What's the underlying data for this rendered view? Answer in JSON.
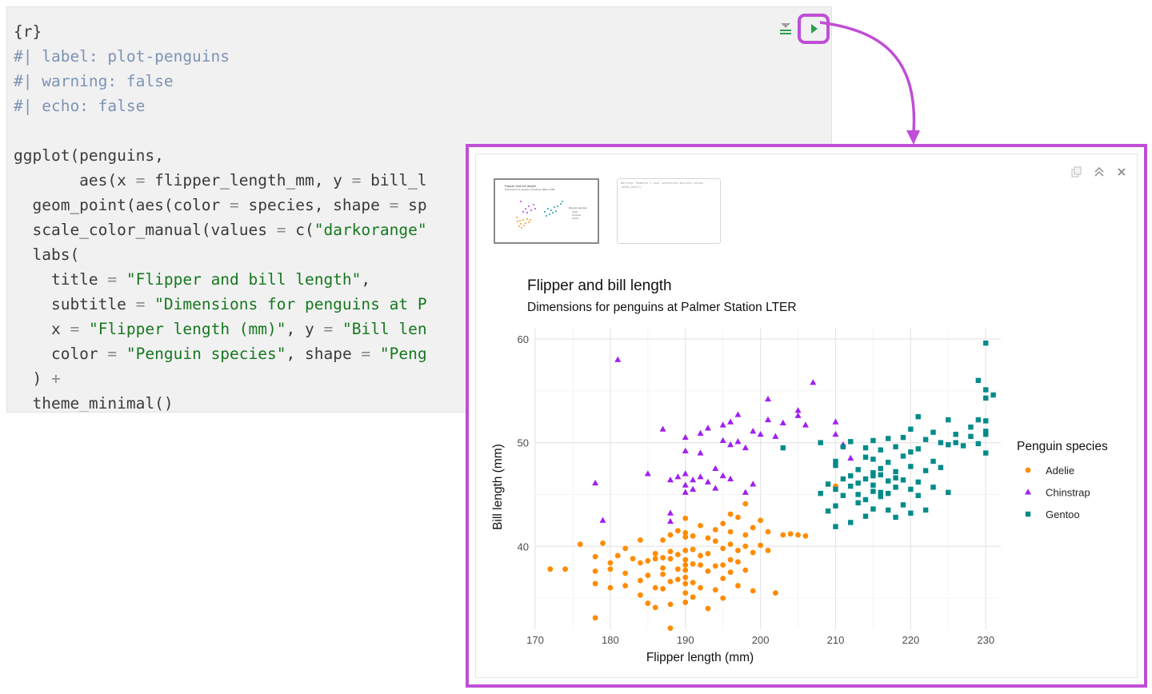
{
  "code_chunk": {
    "lines": [
      [
        {
          "t": "{r}",
          "c": "c-plain"
        }
      ],
      [
        {
          "t": "#| label: plot-penguins",
          "c": "c-com"
        }
      ],
      [
        {
          "t": "#| warning: false",
          "c": "c-com"
        }
      ],
      [
        {
          "t": "#| echo: false",
          "c": "c-com"
        }
      ],
      [
        {
          "t": "",
          "c": "c-plain"
        }
      ],
      [
        {
          "t": "ggplot(penguins,",
          "c": "c-plain"
        }
      ],
      [
        {
          "t": "       aes(x ",
          "c": "c-plain"
        },
        {
          "t": "=",
          "c": "c-op"
        },
        {
          "t": " flipper_length_mm, y ",
          "c": "c-plain"
        },
        {
          "t": "=",
          "c": "c-op"
        },
        {
          "t": " bill_l",
          "c": "c-plain"
        }
      ],
      [
        {
          "t": "  geom_point(aes(color ",
          "c": "c-plain"
        },
        {
          "t": "=",
          "c": "c-op"
        },
        {
          "t": " species, shape ",
          "c": "c-plain"
        },
        {
          "t": "=",
          "c": "c-op"
        },
        {
          "t": " sp",
          "c": "c-plain"
        }
      ],
      [
        {
          "t": "  scale_color_manual(values ",
          "c": "c-plain"
        },
        {
          "t": "=",
          "c": "c-op"
        },
        {
          "t": " c(",
          "c": "c-plain"
        },
        {
          "t": "\"darkorange\"",
          "c": "c-str"
        }
      ],
      [
        {
          "t": "  labs(",
          "c": "c-plain"
        }
      ],
      [
        {
          "t": "    title ",
          "c": "c-plain"
        },
        {
          "t": "=",
          "c": "c-op"
        },
        {
          "t": " ",
          "c": "c-plain"
        },
        {
          "t": "\"Flipper and bill length\"",
          "c": "c-str"
        },
        {
          "t": ",",
          "c": "c-plain"
        }
      ],
      [
        {
          "t": "    subtitle ",
          "c": "c-plain"
        },
        {
          "t": "=",
          "c": "c-op"
        },
        {
          "t": " ",
          "c": "c-plain"
        },
        {
          "t": "\"Dimensions for penguins at P",
          "c": "c-str"
        }
      ],
      [
        {
          "t": "    x ",
          "c": "c-plain"
        },
        {
          "t": "=",
          "c": "c-op"
        },
        {
          "t": " ",
          "c": "c-plain"
        },
        {
          "t": "\"Flipper length (mm)\"",
          "c": "c-str"
        },
        {
          "t": ", y ",
          "c": "c-plain"
        },
        {
          "t": "=",
          "c": "c-op"
        },
        {
          "t": " ",
          "c": "c-plain"
        },
        {
          "t": "\"Bill len",
          "c": "c-str"
        }
      ],
      [
        {
          "t": "    color ",
          "c": "c-plain"
        },
        {
          "t": "=",
          "c": "c-op"
        },
        {
          "t": " ",
          "c": "c-plain"
        },
        {
          "t": "\"Penguin species\"",
          "c": "c-str"
        },
        {
          "t": ", shape ",
          "c": "c-plain"
        },
        {
          "t": "=",
          "c": "c-op"
        },
        {
          "t": " ",
          "c": "c-plain"
        },
        {
          "t": "\"Peng",
          "c": "c-str"
        }
      ],
      [
        {
          "t": "  ) ",
          "c": "c-plain"
        },
        {
          "t": "+",
          "c": "c-op"
        }
      ],
      [
        {
          "t": "  theme_minimal()",
          "c": "c-plain"
        }
      ]
    ]
  },
  "toolbar": {
    "collapse_icon": "collapse-icon",
    "run_icon": "run-chunk-icon"
  },
  "colors": {
    "highlight": "#c04ed6",
    "run": "#2e9e4f",
    "adelie": "#ff8c00",
    "chinstrap": "#a020f0",
    "gentoo": "#008b8b"
  },
  "panel": {
    "tool_icons": [
      "copy-icon",
      "expand-icon",
      "close-icon"
    ],
    "thumbnail_warning": "Warning: Removed 2 rows containing missing values (geom_point)."
  },
  "chart_data": {
    "type": "scatter",
    "title": "Flipper and bill length",
    "subtitle": "Dimensions for penguins at Palmer Station LTER",
    "xlabel": "Flipper length (mm)",
    "ylabel": "Bill length (mm)",
    "xlim": [
      170,
      232
    ],
    "ylim": [
      32,
      61
    ],
    "xticks": [
      170,
      180,
      190,
      200,
      210,
      220,
      230
    ],
    "yticks": [
      40,
      50,
      60
    ],
    "grid": true,
    "legend": {
      "title": "Penguin species",
      "position": "right"
    },
    "series": [
      {
        "name": "Adelie",
        "color": "#ff8c00",
        "shape": "circle",
        "points": [
          [
            172,
            37.8
          ],
          [
            174,
            37.8
          ],
          [
            176,
            40.2
          ],
          [
            178,
            39.0
          ],
          [
            178,
            37.6
          ],
          [
            178,
            36.4
          ],
          [
            178,
            33.1
          ],
          [
            179,
            40.3
          ],
          [
            180,
            38.4
          ],
          [
            180,
            36.0
          ],
          [
            180,
            37.8
          ],
          [
            181,
            39.1
          ],
          [
            182,
            39.8
          ],
          [
            182,
            37.4
          ],
          [
            182,
            36.2
          ],
          [
            183,
            38.8
          ],
          [
            184,
            38.4
          ],
          [
            184,
            40.6
          ],
          [
            184,
            36.7
          ],
          [
            184,
            35.3
          ],
          [
            185,
            37.2
          ],
          [
            185,
            38.6
          ],
          [
            185,
            34.5
          ],
          [
            186,
            39.3
          ],
          [
            186,
            38.8
          ],
          [
            186,
            36.0
          ],
          [
            186,
            34.1
          ],
          [
            187,
            37.3
          ],
          [
            187,
            38.9
          ],
          [
            187,
            40.6
          ],
          [
            187,
            35.9
          ],
          [
            187,
            37.9
          ],
          [
            188,
            38.8
          ],
          [
            188,
            36.6
          ],
          [
            188,
            34.4
          ],
          [
            188,
            39.5
          ],
          [
            188,
            41.1
          ],
          [
            188,
            32.1
          ],
          [
            189,
            37.8
          ],
          [
            189,
            41.5
          ],
          [
            189,
            39.2
          ],
          [
            189,
            36.8
          ],
          [
            190,
            38.2
          ],
          [
            190,
            40.9
          ],
          [
            190,
            37.7
          ],
          [
            190,
            36.4
          ],
          [
            190,
            38.7
          ],
          [
            190,
            35.5
          ],
          [
            190,
            39.6
          ],
          [
            190,
            34.6
          ],
          [
            190,
            41.3
          ],
          [
            190,
            37.0
          ],
          [
            190,
            42.7
          ],
          [
            191,
            36.5
          ],
          [
            191,
            38.3
          ],
          [
            191,
            41.0
          ],
          [
            191,
            39.7
          ],
          [
            191,
            35.1
          ],
          [
            192,
            38.2
          ],
          [
            192,
            39.1
          ],
          [
            192,
            36.0
          ],
          [
            192,
            42.0
          ],
          [
            193,
            39.3
          ],
          [
            193,
            37.6
          ],
          [
            193,
            40.8
          ],
          [
            193,
            34.0
          ],
          [
            194,
            38.1
          ],
          [
            194,
            35.8
          ],
          [
            194,
            40.5
          ],
          [
            194,
            41.6
          ],
          [
            195,
            38.2
          ],
          [
            195,
            36.9
          ],
          [
            195,
            39.8
          ],
          [
            195,
            42.2
          ],
          [
            195,
            35.0
          ],
          [
            196,
            40.2
          ],
          [
            196,
            37.5
          ],
          [
            196,
            41.4
          ],
          [
            196,
            38.7
          ],
          [
            196,
            43.1
          ],
          [
            197,
            39.6
          ],
          [
            197,
            36.2
          ],
          [
            197,
            42.8
          ],
          [
            197,
            38.5
          ],
          [
            198,
            41.1
          ],
          [
            198,
            37.7
          ],
          [
            198,
            40.0
          ],
          [
            198,
            44.1
          ],
          [
            199,
            39.4
          ],
          [
            199,
            41.8
          ],
          [
            199,
            35.7
          ],
          [
            200,
            40.1
          ],
          [
            200,
            42.5
          ],
          [
            201,
            41.4
          ],
          [
            201,
            39.6
          ],
          [
            202,
            35.5
          ],
          [
            203,
            41.1
          ],
          [
            204,
            41.2
          ],
          [
            205,
            41.1
          ],
          [
            206,
            41.0
          ],
          [
            210,
            45.8
          ]
        ]
      },
      {
        "name": "Chinstrap",
        "color": "#a020f0",
        "shape": "triangle",
        "points": [
          [
            178,
            46.1
          ],
          [
            179,
            42.5
          ],
          [
            181,
            58.0
          ],
          [
            185,
            47.0
          ],
          [
            187,
            51.3
          ],
          [
            188,
            43.2
          ],
          [
            188,
            42.4
          ],
          [
            188,
            46.4
          ],
          [
            189,
            46.7
          ],
          [
            190,
            47.0
          ],
          [
            190,
            45.9
          ],
          [
            190,
            49.2
          ],
          [
            190,
            45.2
          ],
          [
            190,
            50.5
          ],
          [
            191,
            46.4
          ],
          [
            191,
            45.5
          ],
          [
            192,
            46.7
          ],
          [
            192,
            49.0
          ],
          [
            192,
            50.9
          ],
          [
            193,
            46.2
          ],
          [
            193,
            51.4
          ],
          [
            194,
            47.5
          ],
          [
            194,
            45.6
          ],
          [
            195,
            51.7
          ],
          [
            195,
            46.8
          ],
          [
            195,
            50.2
          ],
          [
            196,
            49.8
          ],
          [
            196,
            52.0
          ],
          [
            196,
            46.5
          ],
          [
            197,
            50.1
          ],
          [
            197,
            52.7
          ],
          [
            198,
            45.2
          ],
          [
            198,
            49.5
          ],
          [
            199,
            51.1
          ],
          [
            199,
            46.0
          ],
          [
            200,
            50.8
          ],
          [
            201,
            52.2
          ],
          [
            201,
            54.2
          ],
          [
            202,
            50.6
          ],
          [
            203,
            51.9
          ],
          [
            205,
            53.1
          ],
          [
            205,
            52.6
          ],
          [
            206,
            51.7
          ],
          [
            207,
            55.8
          ],
          [
            210,
            52.0
          ],
          [
            210,
            50.8
          ],
          [
            211,
            49.8
          ],
          [
            212,
            48.5
          ]
        ]
      },
      {
        "name": "Gentoo",
        "color": "#008b8b",
        "shape": "square",
        "points": [
          [
            203,
            49.5
          ],
          [
            208,
            45.1
          ],
          [
            208,
            50.0
          ],
          [
            209,
            46.0
          ],
          [
            209,
            43.4
          ],
          [
            210,
            45.5
          ],
          [
            210,
            47.8
          ],
          [
            210,
            41.9
          ],
          [
            210,
            43.9
          ],
          [
            210,
            48.2
          ],
          [
            211,
            44.9
          ],
          [
            211,
            46.5
          ],
          [
            211,
            49.6
          ],
          [
            212,
            42.3
          ],
          [
            212,
            45.8
          ],
          [
            212,
            46.8
          ],
          [
            212,
            50.1
          ],
          [
            213,
            44.2
          ],
          [
            213,
            47.4
          ],
          [
            213,
            46.1
          ],
          [
            213,
            45.0
          ],
          [
            214,
            48.6
          ],
          [
            214,
            42.9
          ],
          [
            214,
            46.5
          ],
          [
            214,
            44.5
          ],
          [
            214,
            49.5
          ],
          [
            215,
            47.1
          ],
          [
            215,
            45.3
          ],
          [
            215,
            46.8
          ],
          [
            215,
            45.9
          ],
          [
            215,
            48.4
          ],
          [
            215,
            43.6
          ],
          [
            215,
            50.2
          ],
          [
            216,
            45.2
          ],
          [
            216,
            46.9
          ],
          [
            216,
            44.8
          ],
          [
            216,
            47.5
          ],
          [
            216,
            49.3
          ],
          [
            217,
            46.3
          ],
          [
            217,
            48.1
          ],
          [
            217,
            45.1
          ],
          [
            217,
            50.4
          ],
          [
            217,
            43.5
          ],
          [
            218,
            47.2
          ],
          [
            218,
            49.6
          ],
          [
            218,
            45.7
          ],
          [
            218,
            42.8
          ],
          [
            218,
            46.6
          ],
          [
            219,
            48.7
          ],
          [
            219,
            44.0
          ],
          [
            219,
            50.5
          ],
          [
            219,
            46.4
          ],
          [
            220,
            47.7
          ],
          [
            220,
            49.1
          ],
          [
            220,
            45.5
          ],
          [
            220,
            51.3
          ],
          [
            220,
            43.2
          ],
          [
            221,
            49.4
          ],
          [
            221,
            46.2
          ],
          [
            221,
            52.5
          ],
          [
            221,
            44.9
          ],
          [
            222,
            50.3
          ],
          [
            222,
            47.3
          ],
          [
            222,
            43.5
          ],
          [
            223,
            51.0
          ],
          [
            223,
            48.2
          ],
          [
            223,
            45.7
          ],
          [
            224,
            50.0
          ],
          [
            224,
            47.6
          ],
          [
            225,
            49.8
          ],
          [
            225,
            52.2
          ],
          [
            225,
            45.2
          ],
          [
            226,
            50.8
          ],
          [
            226,
            50.0
          ],
          [
            227,
            49.7
          ],
          [
            228,
            50.6
          ],
          [
            228,
            51.5
          ],
          [
            229,
            56.0
          ],
          [
            229,
            52.2
          ],
          [
            229,
            49.9
          ],
          [
            230,
            59.6
          ],
          [
            230,
            55.1
          ],
          [
            230,
            54.3
          ],
          [
            230,
            52.1
          ],
          [
            230,
            50.8
          ],
          [
            230,
            49.0
          ],
          [
            230,
            51.1
          ],
          [
            231,
            54.6
          ]
        ]
      }
    ]
  }
}
